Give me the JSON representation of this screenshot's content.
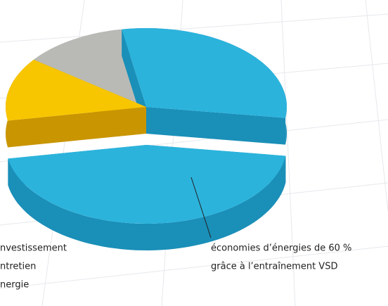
{
  "chart_data": {
    "type": "pie",
    "values": [
      30,
      45,
      13,
      12
    ],
    "colors": [
      "#2bb3dc",
      "#2bb3dc",
      "#f7c600",
      "#b9bab5"
    ],
    "side_colors": [
      "#1a8fb8",
      "#1a8fb8",
      "#c99500",
      "#8e8f8a"
    ],
    "exploded": [
      false,
      true,
      false,
      false
    ],
    "legend": [
      "nvestissement",
      "ntretien",
      "nergie"
    ],
    "annotation": [
      "économies d’énergies de 60 %",
      "grâce à l’entraînement VSD"
    ]
  }
}
